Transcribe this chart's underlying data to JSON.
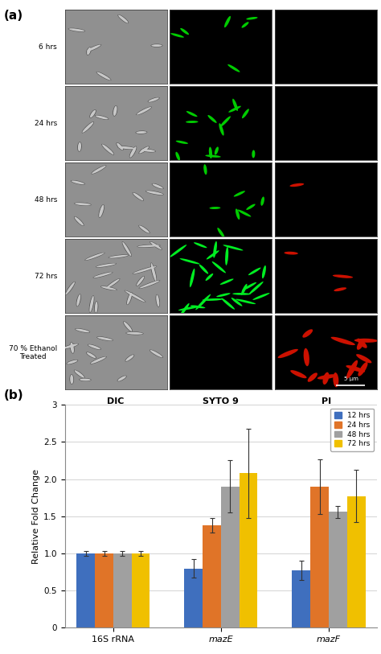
{
  "panel_a_label": "(a)",
  "panel_b_label": "(b)",
  "row_labels": [
    "6 hrs",
    "24 hrs",
    "48 hrs",
    "72 hrs",
    "70 % Ethanol\nTreated"
  ],
  "col_labels": [
    "DIC",
    "SYTO 9",
    "PI"
  ],
  "scale_bar_text": "5 μm",
  "bar_categories": [
    "16S rRNA",
    "mazE",
    "mazF"
  ],
  "bar_series": [
    "12 hrs",
    "24 hrs",
    "48 hrs",
    "72 hrs"
  ],
  "bar_colors": [
    "#3f6fbe",
    "#e07428",
    "#a0a0a0",
    "#f0c000"
  ],
  "bar_values": {
    "16S rRNA": [
      1.0,
      1.0,
      1.0,
      1.0
    ],
    "mazE": [
      0.8,
      1.38,
      1.9,
      2.08
    ],
    "mazF": [
      0.77,
      1.9,
      1.56,
      1.77
    ]
  },
  "bar_errors": {
    "16S rRNA": [
      0.03,
      0.03,
      0.03,
      0.03
    ],
    "mazE": [
      0.12,
      0.1,
      0.35,
      0.6
    ],
    "mazF": [
      0.13,
      0.37,
      0.08,
      0.35
    ]
  },
  "ylabel": "Relative Fold Change",
  "ylim": [
    0,
    3.0
  ],
  "yticks": [
    0,
    0.5,
    1.0,
    1.5,
    2.0,
    2.5,
    3.0
  ],
  "n_bact_dic": [
    6,
    14,
    9,
    20,
    16
  ],
  "n_bact_syto": [
    6,
    14,
    8,
    28,
    0
  ],
  "n_bact_pi": [
    0,
    0,
    1,
    3,
    16
  ],
  "dic_bg": "#909090",
  "syto_bg": "#000000",
  "pi_bg": "#000000",
  "bar_bg": "#ffffff"
}
